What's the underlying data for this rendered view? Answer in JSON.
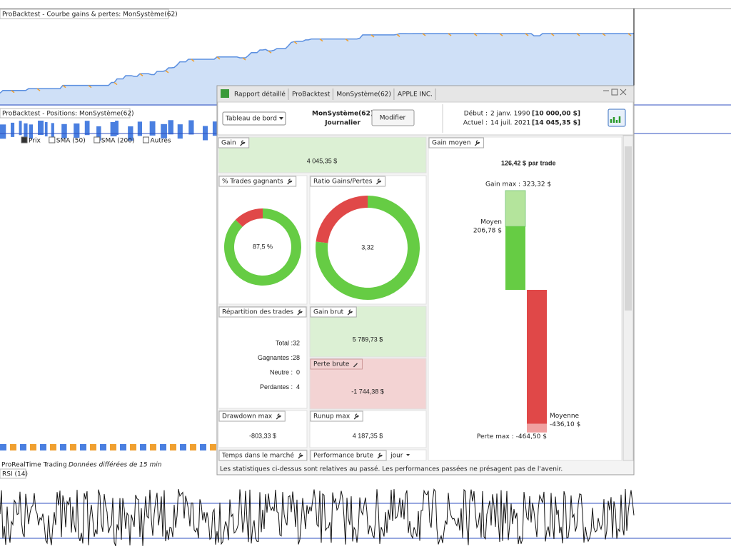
{
  "background": {
    "equity_title": "ProBacktest - Courbe gains & pertes: MonSystème(62)",
    "positions_title": "ProBacktest - Positions: MonSystème(62)",
    "toolbar": [
      "Prix",
      "SMA (50)",
      "SMA (200)",
      "Autres"
    ],
    "status_app": "ProRealTime Trading",
    "status_note": "Données différées de 15 min",
    "rsi_title": "RSI (14)"
  },
  "window": {
    "tabs": [
      "Rapport détaillé",
      "ProBacktest",
      "MonSystème(62)",
      "APPLE INC."
    ],
    "dashboard": "Tableau de bord",
    "system": "MonSystème(62)",
    "period": "Journalier",
    "modify": "Modifier",
    "start_label": "Début :",
    "start_date": "2 janv. 1990",
    "start_capital": "[10 000,00 $]",
    "current_label": "Actuel :",
    "current_date": "14 juil. 2021",
    "current_capital": "[14 045,35 $]",
    "footer": "Les statistiques ci-dessus sont relatives au passé. Les performances passées ne présagent pas de l'avenir."
  },
  "widgets": {
    "gain": {
      "title": "Gain",
      "value": "4 045,35 $"
    },
    "win_rate": {
      "title": "% Trades gagnants",
      "value": "87,5 %"
    },
    "ratio": {
      "title": "Ratio Gains/Pertes",
      "value": "3,32"
    },
    "distribution": {
      "title": "Répartition des trades",
      "rows": [
        {
          "name": "Total :",
          "value": 32
        },
        {
          "name": "Gagnantes :",
          "value": 28
        },
        {
          "name": "Neutre :",
          "value": 0
        },
        {
          "name": "Perdantes :",
          "value": 4
        }
      ]
    },
    "gross_gain": {
      "title": "Gain brut",
      "value": 5789.73,
      "label": "5 789,73 $"
    },
    "gross_loss": {
      "title": "Perte brute",
      "value": -1744.38,
      "label": "-1 744,38 $"
    },
    "drawdown": {
      "title": "Drawdown max",
      "value": "-803,33 $"
    },
    "runup": {
      "title": "Runup max",
      "value": "4 187,35 $"
    },
    "time_in_market": {
      "title": "Temps dans le marché"
    },
    "performance": {
      "title": "Performance brute",
      "unit": "jour"
    },
    "avg_gain": {
      "title": "Gain moyen",
      "headline": "126,42 $",
      "suffix": "par trade",
      "bars": [
        {
          "name": "Gain max :",
          "value": 323.32,
          "label": "323,32 $"
        },
        {
          "name": "Moyen",
          "value": 206.78,
          "label": "206,78 $"
        },
        {
          "name": "Moyenne",
          "value": -436.1,
          "label": "-436,10 $"
        },
        {
          "name": "Perte max :",
          "value": -464.5,
          "label": "-464,50 $"
        }
      ]
    }
  }
}
